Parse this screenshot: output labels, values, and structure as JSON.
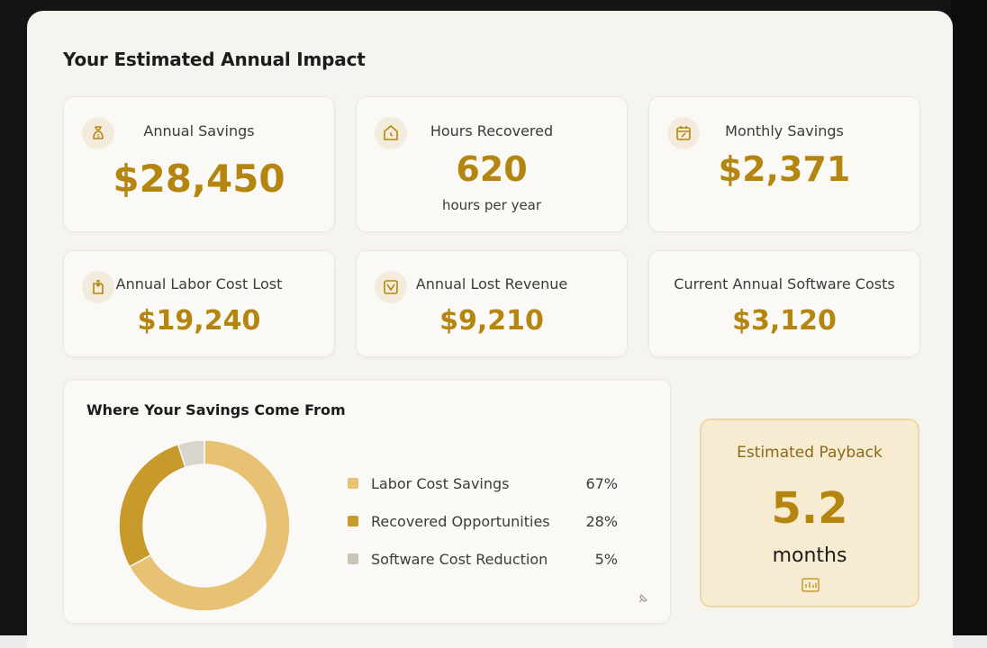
{
  "page": {
    "title": "Your Estimated Annual Impact"
  },
  "colors": {
    "accent": "#b5860f",
    "gold_light": "#e8c274",
    "gold_dark": "#c89a2c",
    "gray": "#d9d4cc",
    "gray_dark": "#a39d92"
  },
  "metrics": [
    {
      "label": "Annual Savings",
      "value": "$28,450",
      "sub": "",
      "icon": "money-bag-icon"
    },
    {
      "label": "Hours Recovered",
      "value": "620",
      "sub": "hours per year",
      "icon": "clock-icon"
    },
    {
      "label": "Monthly Savings",
      "value": "$2,371",
      "sub": "",
      "icon": "calendar-icon"
    },
    {
      "label": "Annual Labor Cost Lost",
      "value": "$19,240",
      "sub": "",
      "icon": "document-icon"
    },
    {
      "label": "Annual Lost Revenue",
      "value": "$9,210",
      "sub": "",
      "icon": "chart-down-icon"
    },
    {
      "label": "Current Annual Software Costs",
      "value": "$3,120",
      "sub": "",
      "icon": ""
    }
  ],
  "breakdown": {
    "title": "Where Your Savings Come From",
    "items": [
      {
        "label": "Labor Cost Savings",
        "pct": "67%",
        "value": 67,
        "color": "#e8c274"
      },
      {
        "label": "Recovered Opportunities",
        "pct": "28%",
        "value": 28,
        "color": "#c89a2c"
      },
      {
        "label": "Software Cost Reduction",
        "pct": "5%",
        "value": 5,
        "color": "#a39d92"
      }
    ]
  },
  "chart_data": {
    "type": "pie",
    "title": "Where Your Savings Come From",
    "categories": [
      "Labor Cost Savings",
      "Recovered Opportunities",
      "Software Cost Reduction"
    ],
    "values": [
      67,
      28,
      5
    ]
  },
  "payback": {
    "label": "Estimated Payback",
    "value": "5.2",
    "unit": "months"
  }
}
